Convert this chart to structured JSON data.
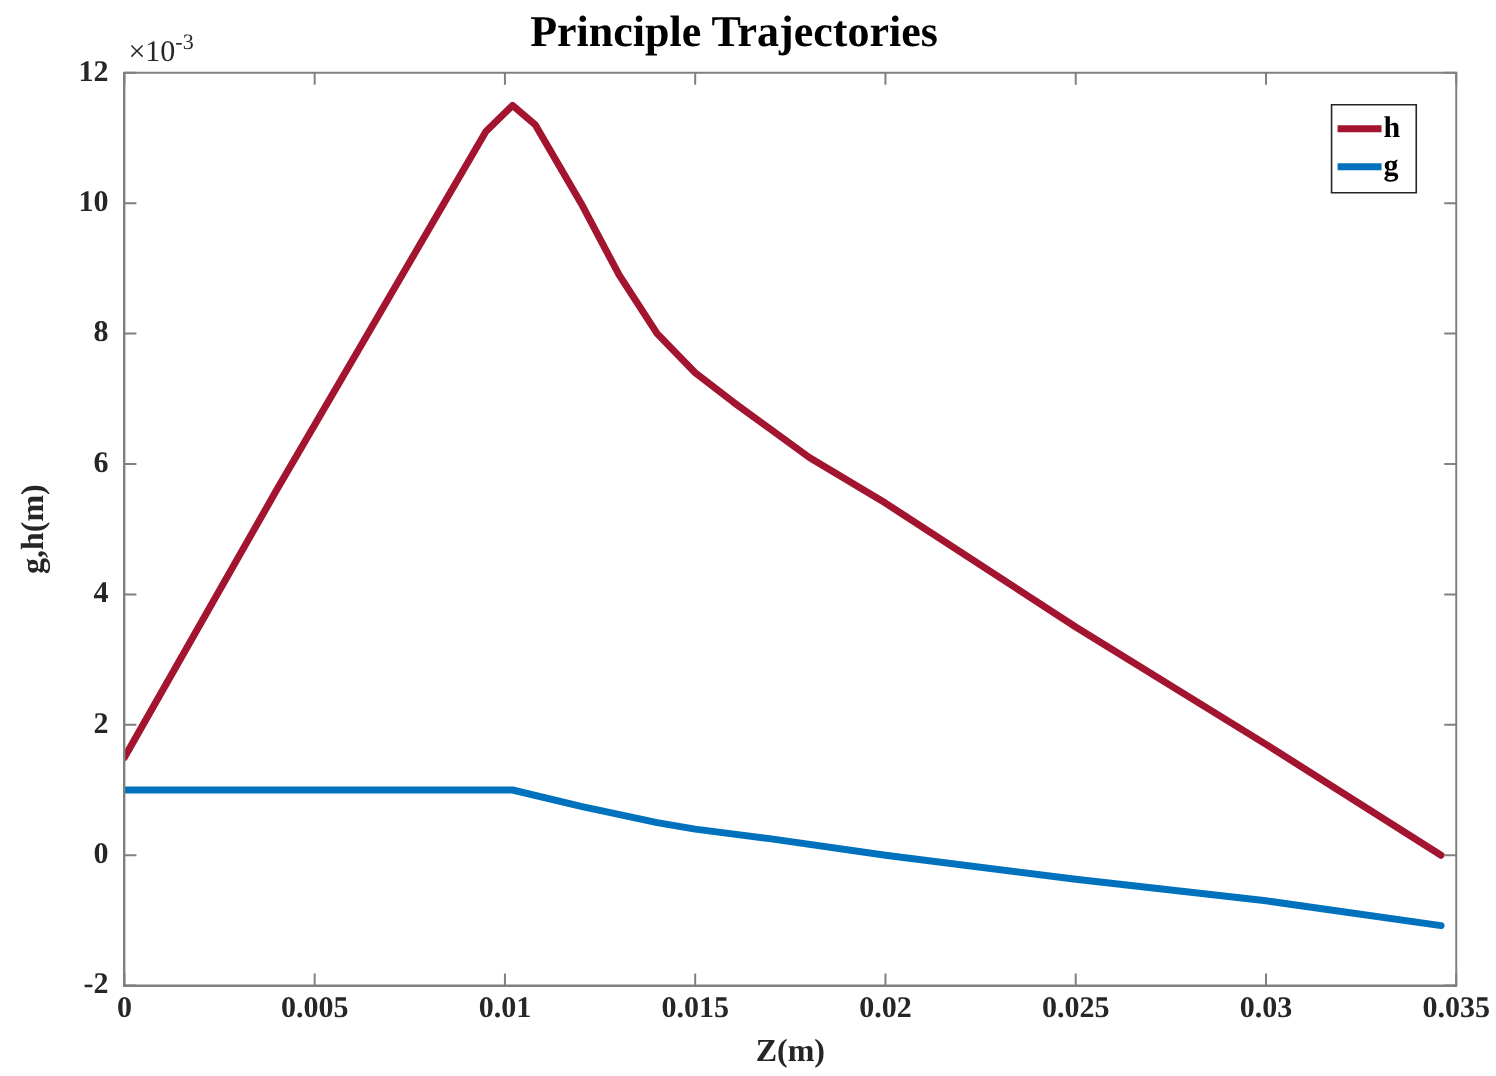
{
  "chart_data": {
    "type": "line",
    "title": "Principle Trajectories",
    "xlabel": "Z(m)",
    "ylabel": "g,h(m)",
    "annotations": [
      "×10$^{-3}$"
    ],
    "series": [
      {
        "name": "h",
        "color": "#a2142f",
        "x": [
          0,
          0.002,
          0.004,
          0.006,
          0.008,
          0.0095,
          0.0102,
          0.0108,
          0.011,
          0.012,
          0.013,
          0.014,
          0.015,
          0.016,
          0.018,
          0.02,
          0.025,
          0.03,
          0.0346
        ],
        "values": [
          1.5,
          3.55,
          5.6,
          7.6,
          9.6,
          11.1,
          11.5,
          11.2,
          11.0,
          10.0,
          8.9,
          8.0,
          7.4,
          6.95,
          6.1,
          5.4,
          3.5,
          1.7,
          0
        ]
      },
      {
        "name": "g",
        "color": "#0072bd",
        "x": [
          0,
          0.005,
          0.0102,
          0.012,
          0.014,
          0.015,
          0.017,
          0.02,
          0.025,
          0.03,
          0.0346
        ],
        "values": [
          1,
          1,
          1,
          0.75,
          0.5,
          0.4,
          0.25,
          0,
          -0.37,
          -0.7,
          -1.08
        ]
      }
    ],
    "xlim": [
      0,
      0.035
    ],
    "xticks": [
      0,
      0.005,
      0.01,
      0.015,
      0.02,
      0.025,
      0.03,
      0.035
    ],
    "ylim": [
      -2,
      12
    ],
    "yticks": [
      -2,
      0,
      2,
      4,
      6,
      8,
      10,
      12
    ],
    "grid": false,
    "legend": "top right",
    "marker": "none",
    "line_style": "solid"
  }
}
